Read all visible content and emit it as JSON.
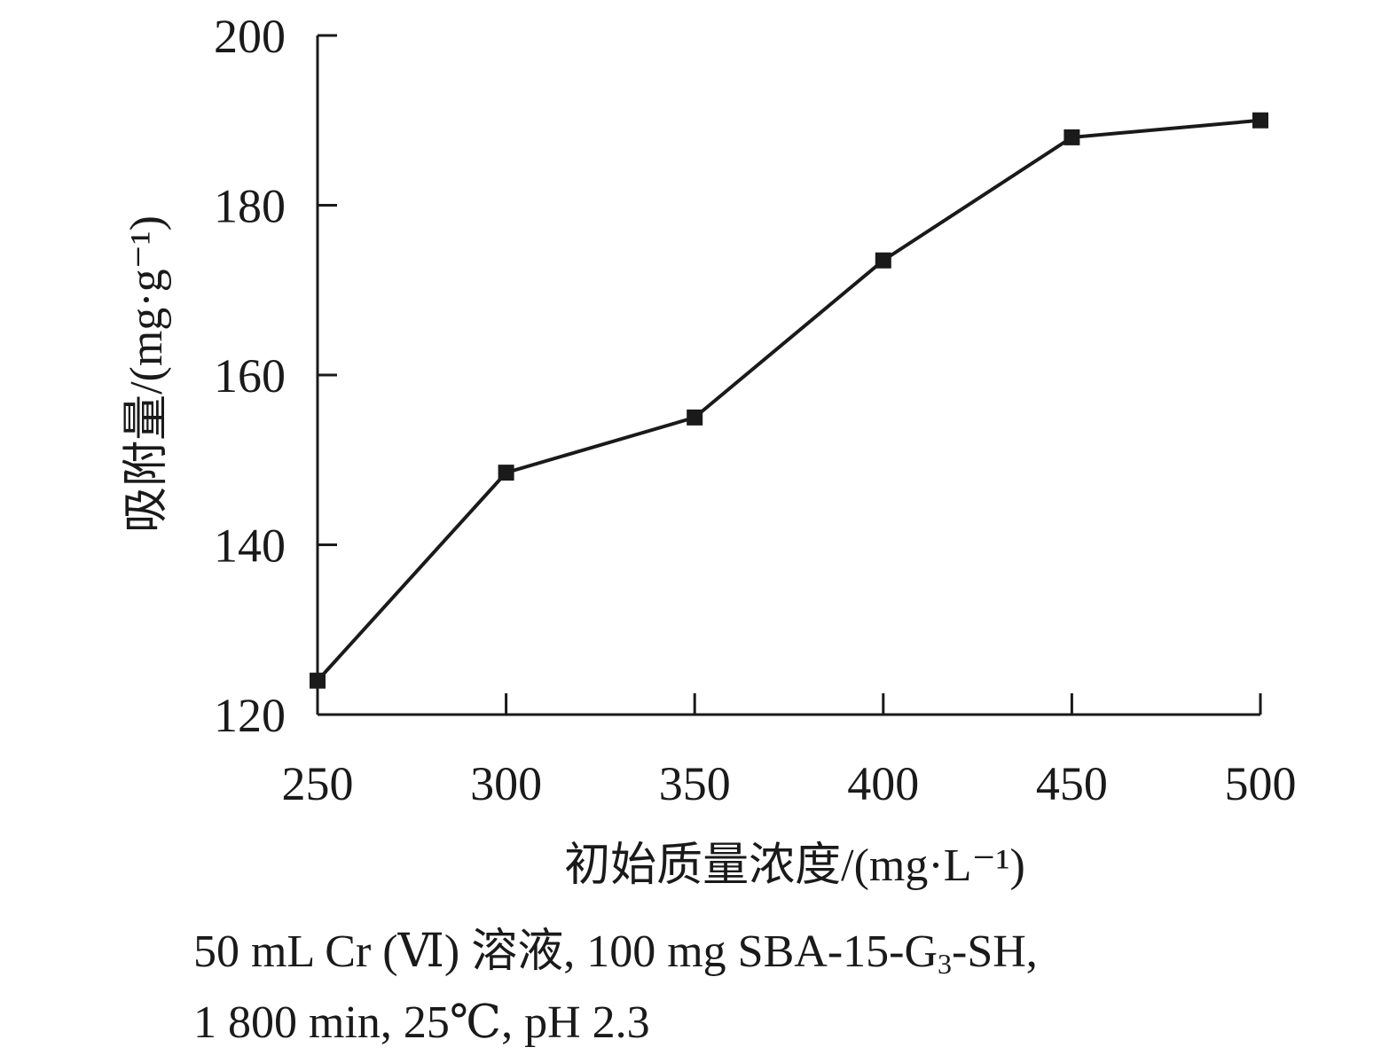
{
  "chart_data": {
    "type": "line",
    "x": [
      250,
      300,
      350,
      400,
      450,
      500
    ],
    "series": [
      {
        "values": [
          124,
          148.5,
          155,
          173.5,
          188,
          190
        ]
      }
    ],
    "xlabel": "初始质量浓度/(mg·L⁻¹)",
    "ylabel": "吸附量/(mg·g⁻¹)",
    "xlim": [
      250,
      500
    ],
    "ylim": [
      120,
      200
    ],
    "x_ticks": [
      "250",
      "300",
      "350",
      "400",
      "450",
      "500"
    ],
    "y_ticks": [
      "120",
      "140",
      "160",
      "180",
      "200"
    ],
    "marker": "square",
    "line_color": "#1a1a1a",
    "grid": false
  },
  "caption": {
    "line1_part1": "50 mL Cr (Ⅵ) 溶液, 100 mg SBA-15-G",
    "line1_sub": "3",
    "line1_part2": "-SH,",
    "line2": "1 800 min, 25℃, pH 2.3"
  }
}
